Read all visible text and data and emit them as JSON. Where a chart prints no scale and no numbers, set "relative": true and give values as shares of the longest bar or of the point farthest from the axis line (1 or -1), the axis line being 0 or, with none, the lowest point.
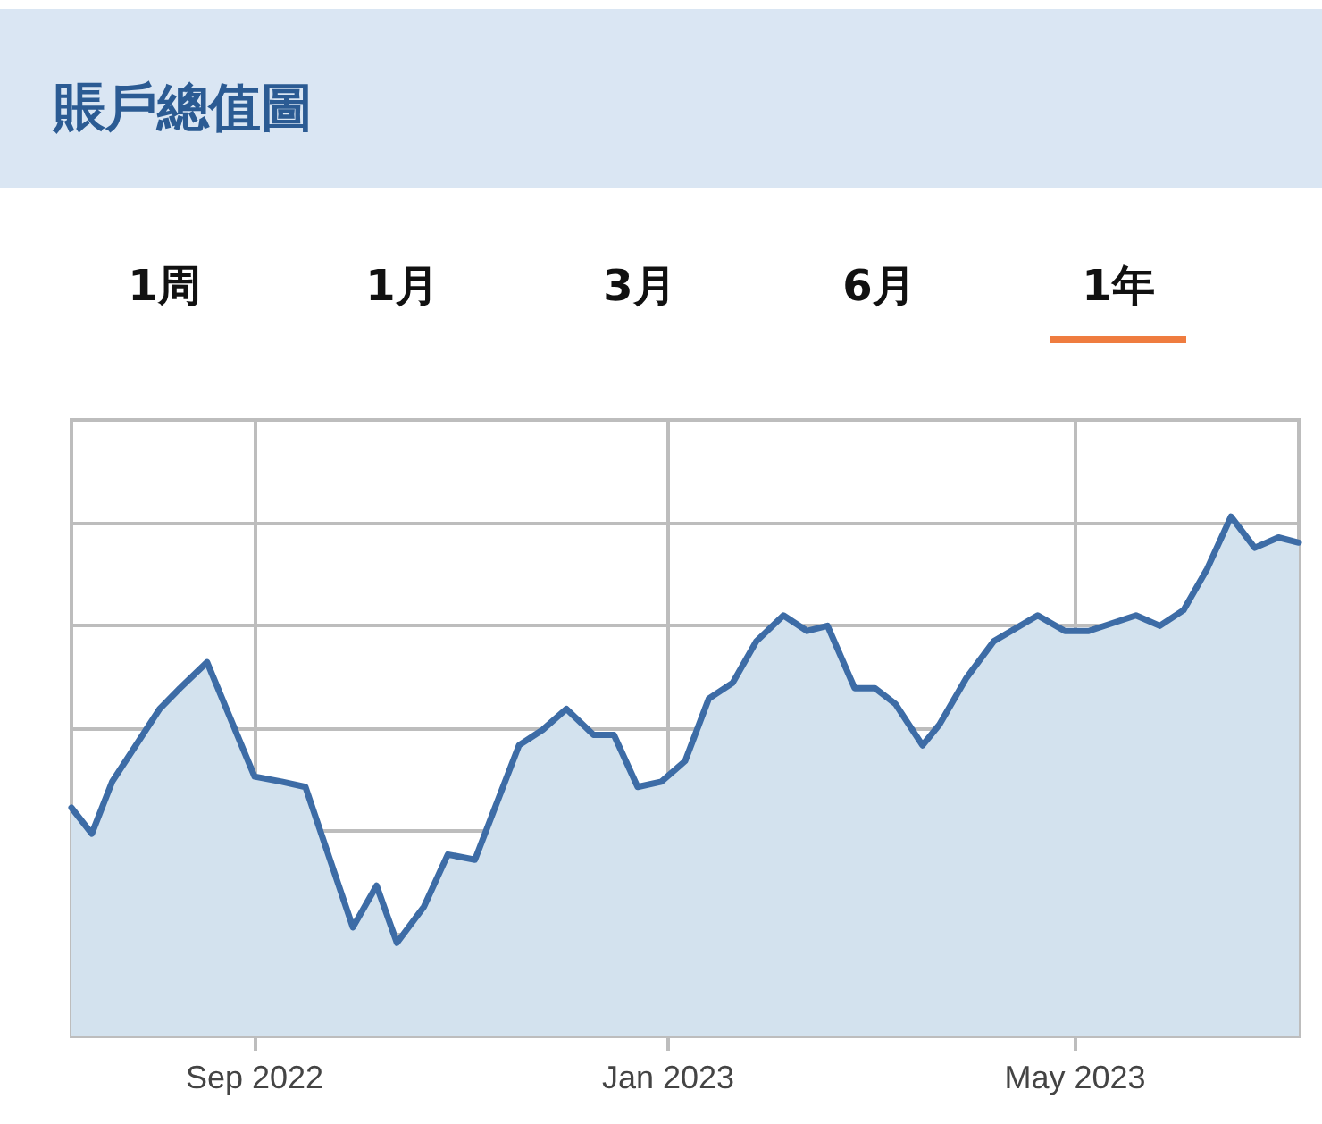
{
  "chart_data": {
    "type": "area",
    "title": "賬戶總值圖",
    "annotations": [
      "1周",
      "1月",
      "3月",
      "6月",
      "1年"
    ],
    "relative": true,
    "grid": true,
    "marker": "none",
    "line_style": "solid",
    "x": [
      "2022-07-09",
      "2022-07-15",
      "2022-07-21",
      "2022-08-04",
      "2022-08-10",
      "2022-08-18",
      "2022-09-01",
      "2022-09-09",
      "2022-09-16",
      "2022-09-30",
      "2022-10-07",
      "2022-10-13",
      "2022-10-21",
      "2022-10-28",
      "2022-11-05",
      "2022-11-18",
      "2022-11-25",
      "2022-12-02",
      "2022-12-10",
      "2022-12-16",
      "2022-12-23",
      "2022-12-30",
      "2023-01-06",
      "2023-01-13",
      "2023-01-20",
      "2023-01-27",
      "2023-02-04",
      "2023-02-11",
      "2023-02-17",
      "2023-02-25",
      "2023-03-03",
      "2023-03-09",
      "2023-03-17",
      "2023-03-22",
      "2023-03-30",
      "2023-04-07",
      "2023-04-20",
      "2023-04-28",
      "2023-05-05",
      "2023-05-19",
      "2023-05-26",
      "2023-06-02",
      "2023-06-09",
      "2023-06-16",
      "2023-06-23",
      "2023-06-30",
      "2023-07-06"
    ],
    "series": [
      {
        "color": "#3d6ca6",
        "values": [
          0.44,
          0.39,
          0.49,
          0.63,
          0.67,
          0.72,
          0.5,
          0.49,
          0.48,
          0.21,
          0.29,
          0.18,
          0.25,
          0.35,
          0.34,
          0.56,
          0.59,
          0.63,
          0.58,
          0.58,
          0.48,
          0.49,
          0.53,
          0.65,
          0.68,
          0.76,
          0.81,
          0.78,
          0.79,
          0.67,
          0.67,
          0.64,
          0.56,
          0.6,
          0.69,
          0.76,
          0.81,
          0.78,
          0.78,
          0.81,
          0.79,
          0.82,
          0.9,
          1,
          0.94,
          0.96,
          0.95
        ]
      }
    ],
    "xlim": [
      "2022-07-09",
      "2023-07-06"
    ],
    "xticks": [
      {
        "value": "2022-09-01",
        "label": "Sep 2022"
      },
      {
        "value": "2023-01-01",
        "label": "Jan 2023"
      },
      {
        "value": "2023-05-01",
        "label": "May 2023"
      }
    ]
  }
}
